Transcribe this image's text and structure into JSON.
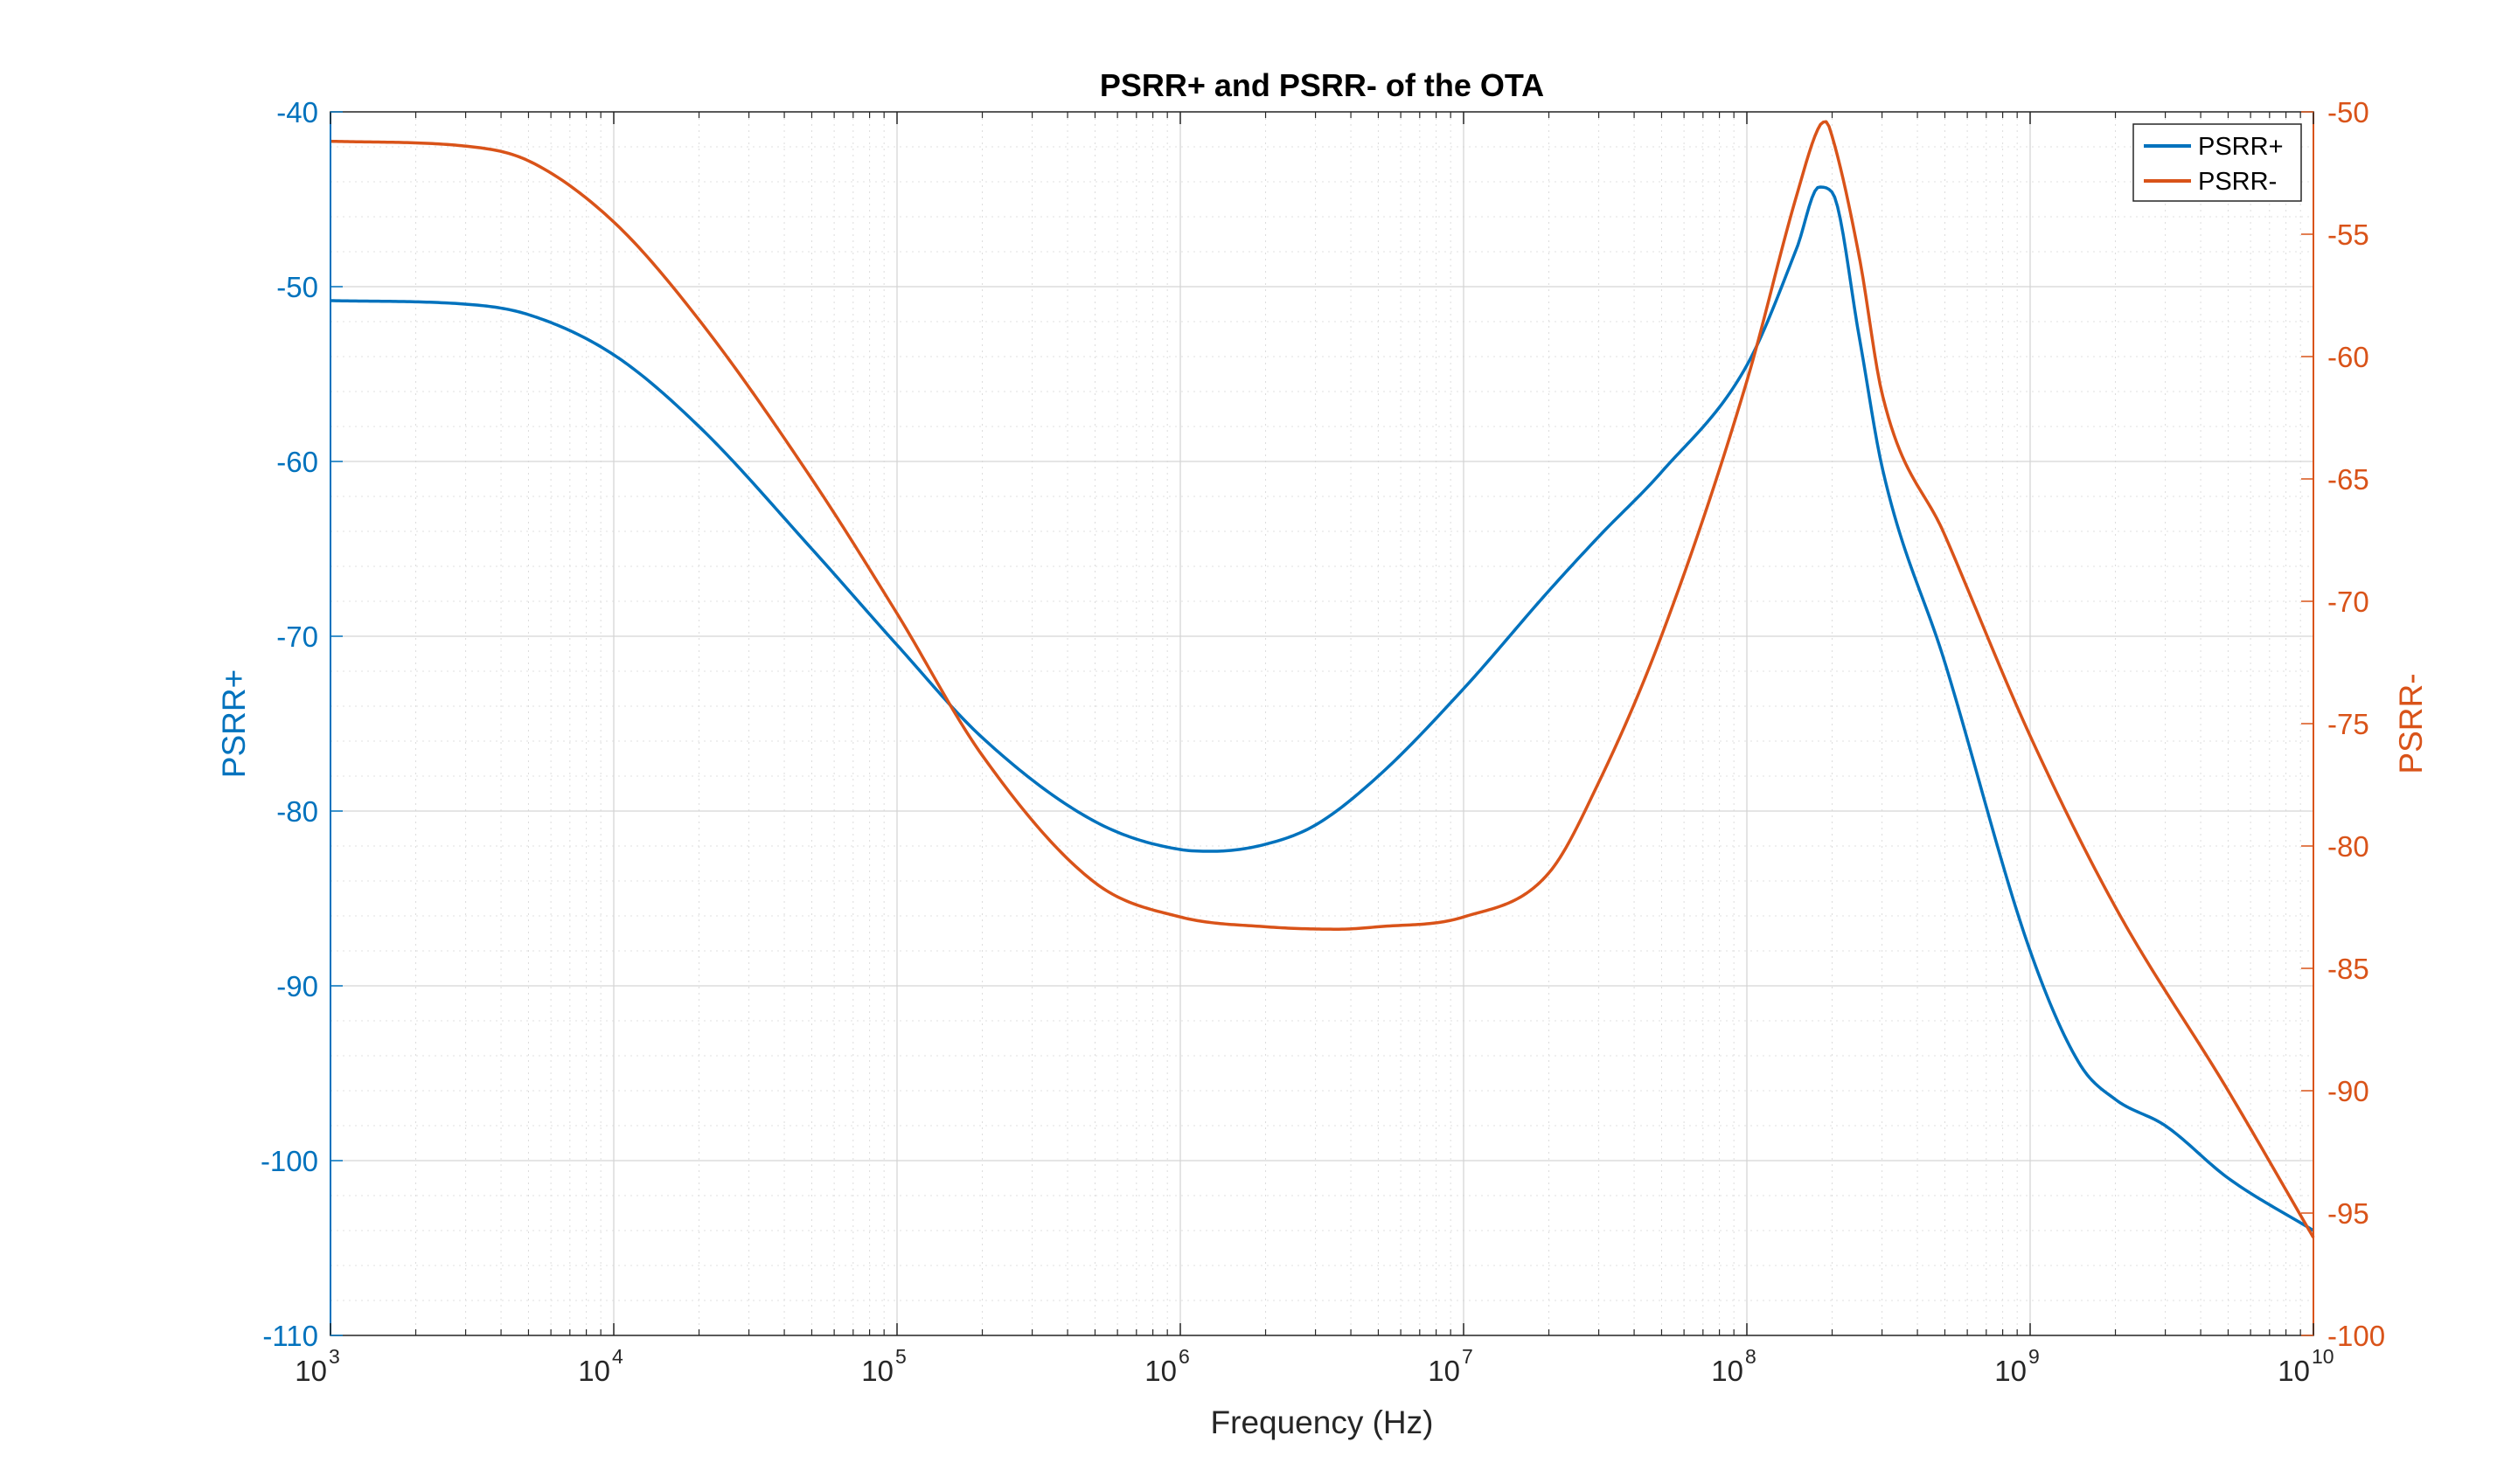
{
  "chart_data": {
    "type": "line",
    "title": "PSRR+ and PSRR- of the OTA",
    "xlabel": "Frequency (Hz)",
    "ylabel_left": "PSRR+",
    "ylabel_right": "PSRR-",
    "xscale": "log",
    "xlim": [
      1000,
      10000000000
    ],
    "ylim_left": [
      -110,
      -40
    ],
    "ylim_right": [
      -100,
      -50
    ],
    "x_ticks": [
      {
        "base": "10",
        "exp": "3",
        "value": 1000
      },
      {
        "base": "10",
        "exp": "4",
        "value": 10000
      },
      {
        "base": "10",
        "exp": "5",
        "value": 100000
      },
      {
        "base": "10",
        "exp": "6",
        "value": 1000000
      },
      {
        "base": "10",
        "exp": "7",
        "value": 10000000
      },
      {
        "base": "10",
        "exp": "8",
        "value": 100000000
      },
      {
        "base": "10",
        "exp": "9",
        "value": 1000000000
      },
      {
        "base": "10",
        "exp": "10",
        "value": 10000000000
      }
    ],
    "y_ticks_left": [
      "-40",
      "-50",
      "-60",
      "-70",
      "-80",
      "-90",
      "-100",
      "-110"
    ],
    "y_ticks_left_values": [
      -40,
      -50,
      -60,
      -70,
      -80,
      -90,
      -100,
      -110
    ],
    "y_ticks_right": [
      "-50",
      "-55",
      "-60",
      "-65",
      "-70",
      "-75",
      "-80",
      "-85",
      "-90",
      "-95",
      "-100"
    ],
    "y_ticks_right_values": [
      -50,
      -55,
      -60,
      -65,
      -70,
      -75,
      -80,
      -85,
      -90,
      -95,
      -100
    ],
    "grid": true,
    "legend_position": "top-right",
    "series": [
      {
        "name": "PSRR+",
        "axis": "left",
        "color": "#0072bd",
        "x": [
          1000,
          3000,
          5000,
          10000,
          20000,
          50000,
          100000,
          200000,
          500000,
          1000000,
          1300000,
          2000000,
          3000000,
          5000000,
          10000000,
          20000000,
          30000000,
          50000000,
          100000000,
          150000000,
          180000000,
          200000000,
          250000000,
          300000000,
          500000000,
          1000000000,
          1500000000,
          2000000000,
          3000000000,
          5000000000,
          10000000000
        ],
        "y": [
          -50.8,
          -51.0,
          -51.6,
          -53.9,
          -58.0,
          -65.0,
          -70.5,
          -75.8,
          -80.6,
          -82.2,
          -82.3,
          -81.9,
          -80.8,
          -78.0,
          -73.0,
          -67.4,
          -64.3,
          -60.6,
          -54.5,
          -47.8,
          -44.3,
          -44.6,
          -53.0,
          -60.3,
          -71.5,
          -88.0,
          -94.5,
          -96.5,
          -98.0,
          -101.0,
          -104.0
        ]
      },
      {
        "name": "PSRR-",
        "axis": "right",
        "color": "#d95319",
        "x": [
          1000,
          3000,
          5000,
          10000,
          20000,
          50000,
          100000,
          200000,
          500000,
          1000000,
          2000000,
          3600000,
          5000000,
          10000000,
          20000000,
          30000000,
          50000000,
          100000000,
          150000000,
          180000000,
          190000000,
          200000000,
          250000000,
          300000000,
          500000000,
          1000000000,
          2000000000,
          5000000000,
          10000000000
        ],
        "y": [
          -51.2,
          -51.4,
          -52.0,
          -54.5,
          -58.5,
          -65.0,
          -70.5,
          -76.3,
          -81.5,
          -82.9,
          -83.3,
          -83.4,
          -83.3,
          -82.9,
          -81.1,
          -77.4,
          -71.4,
          -61.0,
          -53.4,
          -50.6,
          -50.4,
          -51.0,
          -56.0,
          -61.5,
          -67.3,
          -75.5,
          -82.5,
          -90.0,
          -96.0
        ]
      }
    ]
  }
}
